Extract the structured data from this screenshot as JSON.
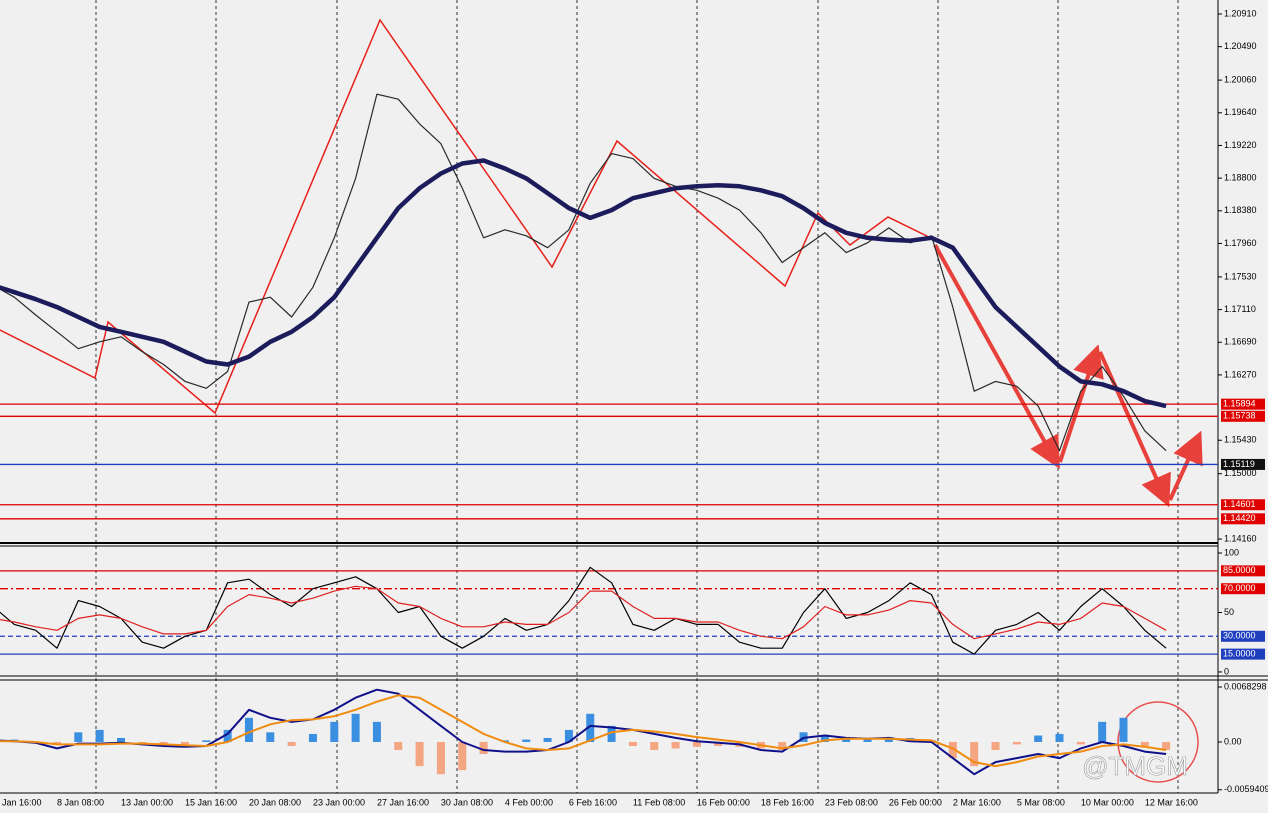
{
  "chart_data": [
    {
      "type": "line",
      "ylim": [
        1.14109,
        1.2109
      ],
      "yticks": [
        {
          "value": 1.2091,
          "label": "1.20910"
        },
        {
          "value": 1.2049,
          "label": "1.20490"
        },
        {
          "value": 1.2006,
          "label": "1.20060"
        },
        {
          "value": 1.1964,
          "label": "1.19640"
        },
        {
          "value": 1.1922,
          "label": "1.19220"
        },
        {
          "value": 1.188,
          "label": "1.18800"
        },
        {
          "value": 1.1838,
          "label": "1.18380"
        },
        {
          "value": 1.1796,
          "label": "1.17960"
        },
        {
          "value": 1.1753,
          "label": "1.17530"
        },
        {
          "value": 1.1711,
          "label": "1.17110"
        },
        {
          "value": 1.1669,
          "label": "1.16690"
        },
        {
          "value": 1.1627,
          "label": "1.16270"
        },
        {
          "value": 1.1543,
          "label": "1.15430"
        },
        {
          "value": 1.15,
          "label": "1.15000"
        },
        {
          "value": 1.1416,
          "label": "1.14160"
        }
      ],
      "hlines": [
        {
          "value": 1.15894,
          "label": "1.15894",
          "color": "#e00000"
        },
        {
          "value": 1.15738,
          "label": "1.15738",
          "color": "#e00000"
        },
        {
          "value": 1.15119,
          "label": "1.15119",
          "color": "#1f3fbf",
          "box": "#111111"
        },
        {
          "value": 1.14601,
          "label": "1.14601",
          "color": "#e00000"
        },
        {
          "value": 1.1442,
          "label": "1.14420",
          "color": "#e00000"
        }
      ],
      "series": [
        {
          "color": "#2a2a2a",
          "values": [
            1.17422,
            1.17269,
            1.1704,
            1.16824,
            1.16607,
            1.16696,
            1.1676,
            1.16569,
            1.16404,
            1.16187,
            1.16098,
            1.16314,
            1.17206,
            1.17269,
            1.17015,
            1.17397,
            1.18033,
            1.18797,
            1.19879,
            1.19815,
            1.19497,
            1.19242,
            1.1867,
            1.18033,
            1.18135,
            1.18058,
            1.17906,
            1.18135,
            1.18733,
            1.19115,
            1.19051,
            1.18797,
            1.18695,
            1.18644,
            1.18542,
            1.18389,
            1.18097,
            1.17715,
            1.17906,
            1.18097,
            1.17842,
            1.17969,
            1.1816,
            1.17969,
            1.18058,
            1.17142,
            1.1606,
            1.16187,
            1.16124,
            1.15869,
            1.15296,
            1.1606,
            1.16378,
            1.15996,
            1.15551,
            1.15296,
            null
          ]
        },
        {
          "color": "#1c1c5c",
          "values": [
            1.17422,
            1.17333,
            1.17244,
            1.17142,
            1.17015,
            1.16887,
            1.16824,
            1.1676,
            1.16696,
            1.16569,
            1.16442,
            1.16404,
            1.16505,
            1.16696,
            1.16824,
            1.17015,
            1.17269,
            1.17651,
            1.18033,
            1.18415,
            1.1867,
            1.1886,
            1.18988,
            1.19026,
            1.18924,
            1.18797,
            1.18606,
            1.18415,
            1.18288,
            1.18389,
            1.18542,
            1.18606,
            1.1867,
            1.18695,
            1.18708,
            1.18695,
            1.18644,
            1.18568,
            1.18415,
            1.18224,
            1.18097,
            1.18033,
            1.18008,
            1.17995,
            1.18033,
            1.17906,
            1.17524,
            1.17142,
            1.16887,
            1.16633,
            1.16378,
            1.16187,
            1.16149,
            1.1606,
            1.15933,
            1.15869,
            null
          ]
        }
      ]
    },
    {
      "type": "line",
      "ylim": [
        -3.4,
        105.9
      ],
      "yticks": [
        100,
        50,
        0
      ],
      "hlines": [
        {
          "value": 85,
          "label": "85.0000",
          "color": "#e00000"
        },
        {
          "value": 70,
          "label": "70.0000",
          "color": "#e00000",
          "style": "dashdot"
        },
        {
          "value": 30,
          "label": "30.0000",
          "color": "#1f3fbf",
          "style": "dashed"
        },
        {
          "value": 15,
          "label": "15.0000",
          "color": "#1f3fbf"
        }
      ],
      "series": [
        {
          "color": "#000000",
          "values": [
            55,
            40,
            35,
            20,
            60,
            55,
            45,
            25,
            20,
            30,
            35,
            75,
            78,
            65,
            55,
            70,
            75,
            80,
            70,
            50,
            55,
            30,
            20,
            30,
            45,
            35,
            40,
            60,
            88,
            75,
            40,
            35,
            45,
            40,
            40,
            25,
            20,
            20,
            50,
            70,
            45,
            50,
            60,
            75,
            65,
            25,
            15,
            35,
            40,
            50,
            35,
            55,
            70,
            55,
            35,
            20,
            null
          ]
        },
        {
          "color": "#e02020",
          "values": [
            45,
            42,
            38,
            35,
            45,
            48,
            45,
            38,
            32,
            32,
            35,
            55,
            65,
            62,
            58,
            62,
            68,
            72,
            70,
            58,
            55,
            45,
            38,
            38,
            42,
            40,
            40,
            50,
            68,
            68,
            55,
            45,
            45,
            42,
            42,
            35,
            30,
            28,
            38,
            55,
            48,
            48,
            52,
            60,
            58,
            40,
            28,
            32,
            36,
            42,
            40,
            45,
            58,
            55,
            45,
            35,
            null
          ]
        }
      ]
    },
    {
      "type": "combo",
      "ylim": [
        -0.00634,
        0.0077
      ],
      "yticks": [
        0.0068298,
        {
          "value": 0,
          "label": "0.00"
        },
        -0.0059409
      ],
      "categories": [
        "Jan 16:00",
        null,
        null,
        "8 Jan 08:00",
        null,
        null,
        "13 Jan 00:00",
        null,
        null,
        "15 Jan 16:00",
        null,
        null,
        "20 Jan 08:00",
        null,
        null,
        "23 Jan 00:00",
        null,
        null,
        "27 Jan 16:00",
        null,
        null,
        "30 Jan 08:00",
        null,
        null,
        "4 Feb 00:00",
        null,
        null,
        "6 Feb 16:00",
        null,
        null,
        "11 Feb 08:00",
        null,
        null,
        "16 Feb 00:00",
        null,
        null,
        "18 Feb 16:00",
        null,
        null,
        "23 Feb 08:00",
        null,
        null,
        "26 Feb 00:00",
        null,
        null,
        "2 Mar 16:00",
        null,
        null,
        "5 Mar 08:00",
        null,
        null,
        "10 Mar 00:00",
        null,
        null,
        "12 Mar 16:00",
        null,
        null
      ],
      "series": [
        {
          "type": "bar",
          "color": "#3b8fe0",
          "negative_color": "#f4a582",
          "values": [
            0.0005,
            0.0003,
            -0.0002,
            -0.0003,
            0.0012,
            0.0015,
            0.0005,
            -0.0003,
            -0.0004,
            -0.0003,
            0.0002,
            0.0015,
            0.003,
            0.0012,
            -0.0005,
            0.001,
            0.0025,
            0.0035,
            0.0025,
            -0.001,
            -0.003,
            -0.004,
            -0.0035,
            -0.0015,
            0.0002,
            0.0003,
            0.0005,
            0.0015,
            0.0035,
            0.002,
            -0.0005,
            -0.001,
            -0.0008,
            -0.0006,
            -0.0005,
            -0.0006,
            -0.0008,
            -0.001,
            0.0012,
            0.0008,
            0.0005,
            0.0003,
            0.0006,
            0.0005,
            0.0002,
            -0.002,
            -0.003,
            -0.001,
            -0.0003,
            0.0008,
            0.001,
            -0.0003,
            0.0025,
            0.003,
            -0.0005,
            -0.001,
            null
          ]
        },
        {
          "type": "line",
          "color": "#10108a",
          "values": [
            0.0002,
            0.0001,
            -0.0001,
            -0.0008,
            -0.0002,
            -0.0002,
            -0.0001,
            -0.0003,
            -0.0005,
            -0.0006,
            -0.0005,
            0.001,
            0.004,
            0.003,
            0.0025,
            0.0028,
            0.004,
            0.0055,
            0.0065,
            0.006,
            0.004,
            0.002,
            0,
            -0.001,
            -0.0012,
            -0.0012,
            -0.001,
            0,
            0.002,
            0.0018,
            0.0015,
            0.001,
            0.0005,
            0.0001,
            -0.0001,
            -0.0003,
            -0.001,
            -0.0012,
            0.0005,
            0.0008,
            0.0005,
            0.0004,
            0.0005,
            0.0001,
            0,
            -0.002,
            -0.004,
            -0.0025,
            -0.002,
            -0.0015,
            -0.002,
            -0.0008,
            0,
            -0.0005,
            -0.0012,
            -0.0015,
            null
          ]
        },
        {
          "type": "line",
          "color": "#f08c10",
          "values": [
            0.0001,
            0.0001,
            0,
            -0.0003,
            -0.0003,
            -0.0003,
            -0.0002,
            -0.0002,
            -0.0003,
            -0.0004,
            -0.0005,
            0,
            0.0012,
            0.0022,
            0.0027,
            0.0028,
            0.0032,
            0.004,
            0.005,
            0.0058,
            0.0055,
            0.004,
            0.0025,
            0.001,
            0,
            -0.0008,
            -0.001,
            -0.0008,
            0.0002,
            0.0012,
            0.0015,
            0.0013,
            0.001,
            0.0006,
            0.0003,
            0,
            -0.0004,
            -0.0008,
            -0.0004,
            0.0002,
            0.0004,
            0.0004,
            0.0004,
            0.0003,
            0.0002,
            -0.0008,
            -0.0025,
            -0.003,
            -0.0025,
            -0.0018,
            -0.0015,
            -0.0012,
            -0.0005,
            -0.0003,
            -0.0006,
            -0.001,
            null
          ]
        }
      ]
    }
  ],
  "watermark": "@TMGM"
}
